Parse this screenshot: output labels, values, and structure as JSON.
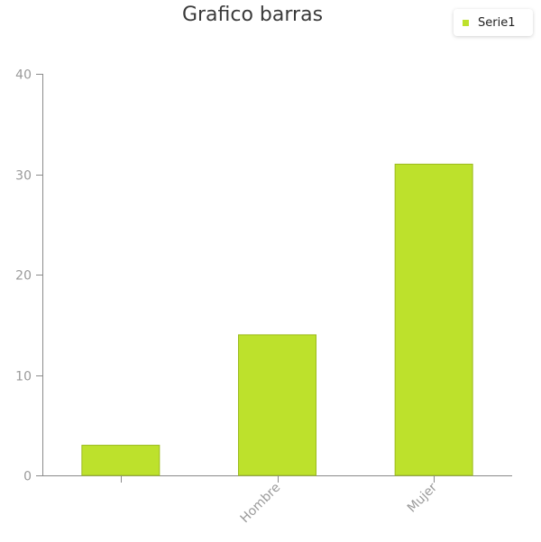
{
  "chart_data": {
    "type": "bar",
    "title": "Grafico barras",
    "categories": [
      "",
      "Hombre",
      "Mujer"
    ],
    "series": [
      {
        "name": "Serie1",
        "values": [
          3,
          14,
          31
        ]
      }
    ],
    "ylim": [
      0,
      40
    ],
    "yticks": [
      0,
      10,
      20,
      30,
      40
    ],
    "bar_color": "#bde12c",
    "bar_edge_color": "#9cbb1f",
    "axis_color": "#8a8a8a",
    "grid": false,
    "legend_position": "top-right"
  }
}
